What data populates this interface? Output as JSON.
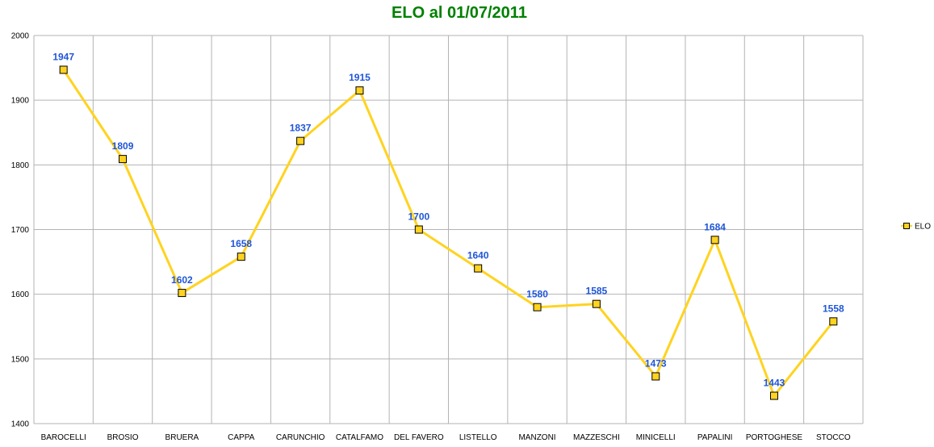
{
  "colors": {
    "title": "#008000",
    "series": "#FFD320",
    "marker_fill": "#FFD320",
    "marker_stroke": "#000000",
    "data_label": "#1f56d8",
    "grid": "#b3b3b3",
    "axis": "#b3b3b3"
  },
  "chart_data": {
    "type": "line",
    "title": "ELO al 01/07/2011",
    "xlabel": "",
    "ylabel": "",
    "categories": [
      "BAROCELLI",
      "BROSIO",
      "BRUERA",
      "CAPPA",
      "CARUNCHIO",
      "CATALFAMO",
      "DEL FAVERO",
      "LISTELLO",
      "MANZONI",
      "MAZZESCHI",
      "MINICELLI",
      "PAPALINI",
      "PORTOGHESE",
      "STOCCO"
    ],
    "series": [
      {
        "name": "ELO",
        "values": [
          1947,
          1809,
          1602,
          1658,
          1837,
          1915,
          1700,
          1640,
          1580,
          1585,
          1473,
          1684,
          1443,
          1558
        ]
      }
    ],
    "ylim": [
      1400,
      2000
    ],
    "yticks": [
      1400,
      1500,
      1600,
      1700,
      1800,
      1900,
      2000
    ],
    "grid": true,
    "legend_position": "right",
    "marker": "square",
    "data_labels": true
  }
}
